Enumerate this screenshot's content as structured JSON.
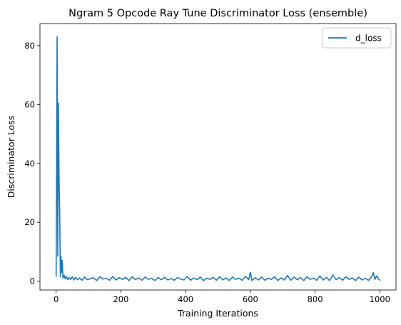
{
  "chart_data": {
    "type": "line",
    "title": "Ngram 5 Opcode Ray Tune Discriminator Loss (ensemble)",
    "xlabel": "Training Iterations",
    "ylabel": "Discriminator Loss",
    "xlim": [
      -50,
      1050
    ],
    "ylim": [
      -3.0,
      87.5
    ],
    "xticks": [
      0,
      200,
      400,
      600,
      800,
      1000
    ],
    "yticks": [
      0,
      20,
      40,
      60,
      80
    ],
    "grid": false,
    "legend_position": "top-right",
    "series": [
      {
        "name": "d_loss",
        "color": "#1f77b4",
        "x": [
          0,
          3,
          5,
          7,
          9,
          11,
          13,
          15,
          17,
          19,
          21,
          23,
          25,
          28,
          32,
          36,
          40,
          45,
          50,
          55,
          60,
          66,
          72,
          80,
          88,
          96,
          105,
          115,
          125,
          135,
          145,
          155,
          165,
          175,
          185,
          195,
          205,
          215,
          225,
          235,
          245,
          255,
          265,
          275,
          285,
          295,
          305,
          315,
          325,
          335,
          345,
          355,
          365,
          375,
          385,
          395,
          405,
          415,
          425,
          435,
          445,
          455,
          465,
          475,
          485,
          495,
          505,
          515,
          525,
          535,
          545,
          555,
          565,
          575,
          585,
          595,
          600,
          605,
          615,
          625,
          635,
          645,
          655,
          665,
          675,
          685,
          695,
          705,
          715,
          725,
          735,
          745,
          755,
          765,
          775,
          785,
          795,
          805,
          815,
          825,
          835,
          845,
          855,
          865,
          875,
          885,
          895,
          905,
          915,
          925,
          935,
          945,
          955,
          965,
          975,
          980,
          985,
          990,
          1000
        ],
        "y": [
          1.5,
          83.0,
          8.5,
          60.5,
          35.0,
          24.0,
          1.5,
          8.5,
          3.0,
          7.0,
          1.0,
          1.5,
          2.0,
          0.8,
          1.6,
          0.5,
          1.2,
          0.6,
          1.5,
          0.4,
          1.3,
          0.5,
          1.1,
          0.3,
          1.4,
          0.5,
          0.8,
          1.2,
          0.2,
          1.5,
          0.7,
          1.0,
          0.3,
          1.6,
          0.4,
          1.2,
          0.6,
          1.3,
          0.2,
          1.5,
          0.5,
          1.1,
          0.3,
          1.4,
          0.6,
          1.0,
          0.2,
          1.2,
          0.5,
          1.3,
          0.4,
          0.9,
          0.3,
          1.2,
          0.7,
          0.4,
          1.6,
          0.3,
          1.1,
          0.5,
          1.4,
          0.2,
          1.0,
          0.6,
          1.3,
          0.3,
          1.5,
          0.4,
          1.1,
          0.2,
          1.4,
          0.6,
          1.0,
          0.3,
          1.6,
          0.5,
          3.0,
          0.2,
          1.2,
          0.4,
          1.4,
          0.3,
          1.0,
          0.6,
          1.5,
          0.2,
          1.1,
          0.4,
          2.0,
          0.3,
          1.4,
          0.5,
          1.2,
          0.2,
          1.5,
          0.6,
          1.0,
          0.3,
          1.8,
          0.4,
          1.3,
          0.2,
          2.1,
          0.5,
          1.2,
          0.3,
          1.5,
          0.6,
          1.1,
          0.2,
          1.4,
          0.4,
          1.0,
          0.3,
          1.5,
          2.9,
          0.6,
          1.8,
          0.2
        ]
      }
    ]
  }
}
